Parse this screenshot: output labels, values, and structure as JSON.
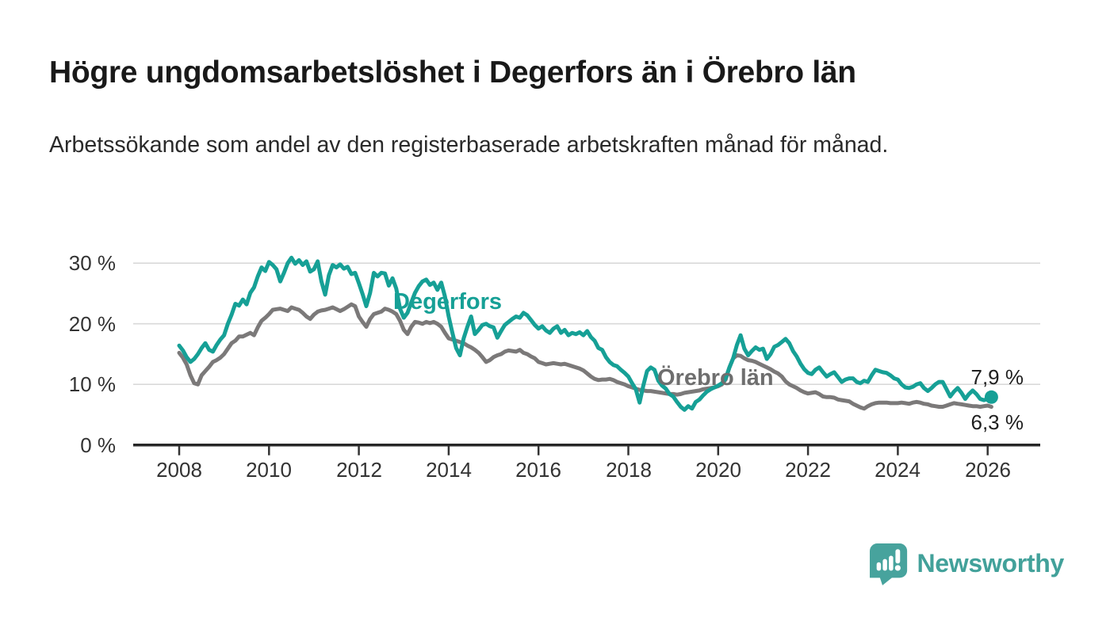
{
  "header": {
    "title": "Högre ungdomsarbetslöshet i Degerfors än i Örebro län",
    "subtitle": "Arbetssökande som andel av den registerbaserade arbetskraften månad för månad."
  },
  "chart_data": {
    "type": "line",
    "title": "Högre ungdomsarbetslöshet i Degerfors än i Örebro län",
    "subtitle": "Arbetssökande som andel av den registerbaserade arbetskraften månad för månad.",
    "frequency": "monthly",
    "x_start": "2008-01",
    "x_end": "2026-02",
    "x_ticks": [
      2008,
      2010,
      2012,
      2014,
      2016,
      2018,
      2020,
      2022,
      2024,
      2026
    ],
    "x_tick_labels": [
      "2008",
      "2010",
      "2012",
      "2014",
      "2016",
      "2018",
      "2020",
      "2022",
      "2024",
      "2026"
    ],
    "y_ticks": [
      30,
      20,
      10,
      0
    ],
    "y_tick_labels": [
      "30 %",
      "20 %",
      "10 %",
      "0 %"
    ],
    "ylim": [
      0,
      33
    ],
    "y_unit": "%",
    "grid": true,
    "colors": {
      "accent_teal": "#16a096",
      "line_gray": "#7b7979",
      "gridline": "#d9d9d9",
      "axis": "#262626"
    },
    "series": [
      {
        "name": "Degerfors",
        "label": "Degerfors",
        "color": "#16a096",
        "end_label": "7,9 %",
        "end_value": 7.9,
        "end_dot": true,
        "values": [
          16.4,
          15.6,
          14.5,
          13.7,
          14.2,
          15.0,
          16.0,
          16.8,
          15.7,
          15.4,
          16.5,
          17.4,
          18.1,
          20.0,
          21.5,
          23.3,
          23.0,
          24.0,
          23.2,
          25.1,
          26.0,
          27.8,
          29.3,
          28.7,
          30.2,
          29.7,
          29.0,
          27.0,
          28.4,
          30.0,
          30.9,
          29.9,
          30.5,
          29.7,
          30.3,
          28.6,
          29.0,
          30.3,
          27.0,
          24.8,
          28.0,
          29.7,
          29.3,
          29.8,
          29.1,
          29.4,
          28.2,
          28.4,
          26.7,
          24.9,
          22.9,
          25.1,
          28.4,
          27.8,
          28.4,
          28.3,
          26.3,
          27.5,
          25.8,
          22.5,
          21.0,
          21.8,
          23.5,
          25.1,
          26.2,
          27.0,
          27.3,
          26.4,
          26.8,
          25.6,
          26.8,
          24.5,
          21.2,
          18.5,
          16.0,
          14.8,
          17.6,
          19.5,
          21.2,
          18.3,
          19.0,
          19.8,
          20.0,
          19.6,
          19.4,
          17.7,
          18.8,
          19.8,
          20.3,
          20.8,
          21.2,
          21.0,
          21.8,
          21.4,
          20.6,
          19.8,
          19.2,
          19.6,
          18.9,
          18.5,
          19.2,
          19.6,
          18.5,
          19.0,
          18.1,
          18.5,
          18.3,
          18.6,
          18.1,
          18.8,
          17.8,
          17.2,
          16.0,
          15.7,
          14.5,
          13.7,
          13.2,
          13.0,
          12.4,
          11.9,
          11.3,
          10.2,
          9.2,
          7.0,
          9.8,
          12.2,
          12.8,
          12.4,
          10.6,
          9.8,
          9.3,
          8.4,
          8.0,
          7.1,
          6.3,
          5.8,
          6.4,
          6.0,
          7.1,
          7.5,
          8.2,
          8.8,
          9.2,
          9.5,
          9.8,
          10.2,
          11.0,
          12.8,
          14.3,
          16.5,
          18.1,
          15.9,
          14.8,
          15.5,
          16.1,
          15.7,
          15.9,
          14.2,
          15.0,
          16.2,
          16.5,
          17.0,
          17.5,
          16.8,
          15.5,
          14.6,
          13.4,
          12.5,
          11.9,
          11.7,
          12.4,
          12.8,
          12.0,
          11.3,
          11.7,
          12.0,
          11.2,
          10.4,
          10.8,
          11.0,
          11.0,
          10.4,
          10.2,
          10.6,
          10.4,
          11.5,
          12.4,
          12.2,
          12.0,
          11.9,
          11.5,
          11.0,
          10.8,
          10.0,
          9.5,
          9.4,
          9.6,
          10.0,
          10.2,
          9.4,
          8.9,
          9.4,
          10.0,
          10.4,
          10.4,
          9.2,
          8.0,
          8.8,
          9.4,
          8.6,
          7.6,
          8.4,
          9.0,
          8.4,
          7.6,
          7.4,
          7.6,
          7.9
        ]
      },
      {
        "name": "Örebro län",
        "label": "Örebro län",
        "color": "#7b7979",
        "end_label": "6,3 %",
        "end_value": 6.3,
        "end_dot": false,
        "values": [
          15.2,
          14.4,
          13.3,
          11.5,
          10.2,
          10.0,
          11.5,
          12.2,
          12.9,
          13.7,
          14.0,
          14.4,
          15.0,
          15.9,
          16.8,
          17.2,
          17.9,
          17.9,
          18.2,
          18.5,
          18.1,
          19.4,
          20.5,
          21.0,
          21.6,
          22.3,
          22.4,
          22.5,
          22.3,
          22.1,
          22.7,
          22.5,
          22.3,
          21.8,
          21.2,
          20.8,
          21.5,
          22.0,
          22.2,
          22.3,
          22.5,
          22.7,
          22.4,
          22.1,
          22.4,
          22.8,
          23.2,
          22.9,
          21.2,
          20.3,
          19.5,
          20.8,
          21.6,
          21.8,
          22.0,
          22.5,
          22.3,
          22.0,
          21.6,
          20.5,
          19.0,
          18.3,
          19.5,
          20.3,
          20.2,
          20.0,
          20.3,
          20.1,
          20.3,
          20.0,
          19.5,
          18.5,
          17.6,
          17.4,
          17.2,
          17.0,
          16.8,
          16.4,
          16.1,
          15.7,
          15.2,
          14.5,
          13.7,
          14.0,
          14.5,
          14.8,
          15.0,
          15.4,
          15.6,
          15.5,
          15.4,
          15.7,
          15.2,
          15.0,
          14.6,
          14.3,
          13.7,
          13.5,
          13.3,
          13.4,
          13.5,
          13.4,
          13.3,
          13.4,
          13.2,
          13.0,
          12.8,
          12.6,
          12.3,
          11.8,
          11.3,
          10.9,
          10.7,
          10.8,
          10.8,
          10.9,
          10.7,
          10.4,
          10.2,
          10.0,
          9.7,
          9.5,
          9.3,
          9.1,
          9.0,
          8.9,
          8.9,
          8.8,
          8.7,
          8.6,
          8.5,
          8.4,
          8.4,
          8.3,
          8.4,
          8.6,
          8.7,
          8.8,
          8.9,
          9.0,
          9.2,
          9.3,
          9.4,
          9.5,
          9.7,
          10.0,
          10.8,
          12.8,
          14.3,
          14.8,
          14.7,
          14.3,
          14.0,
          13.9,
          13.7,
          13.4,
          13.1,
          12.8,
          12.5,
          12.1,
          11.8,
          11.3,
          10.5,
          10.0,
          9.7,
          9.4,
          9.0,
          8.7,
          8.5,
          8.6,
          8.7,
          8.4,
          8.0,
          7.9,
          7.9,
          7.8,
          7.5,
          7.4,
          7.3,
          7.2,
          6.8,
          6.5,
          6.2,
          6.0,
          6.4,
          6.7,
          6.9,
          7.0,
          7.0,
          7.0,
          6.9,
          6.9,
          6.9,
          7.0,
          6.9,
          6.8,
          7.0,
          7.1,
          7.0,
          6.8,
          6.7,
          6.5,
          6.4,
          6.3,
          6.3,
          6.5,
          6.7,
          6.9,
          6.8,
          6.7,
          6.6,
          6.5,
          6.4,
          6.4,
          6.3,
          6.4,
          6.5,
          6.3
        ]
      }
    ]
  },
  "footer": {
    "brand": "Newsworthy"
  }
}
